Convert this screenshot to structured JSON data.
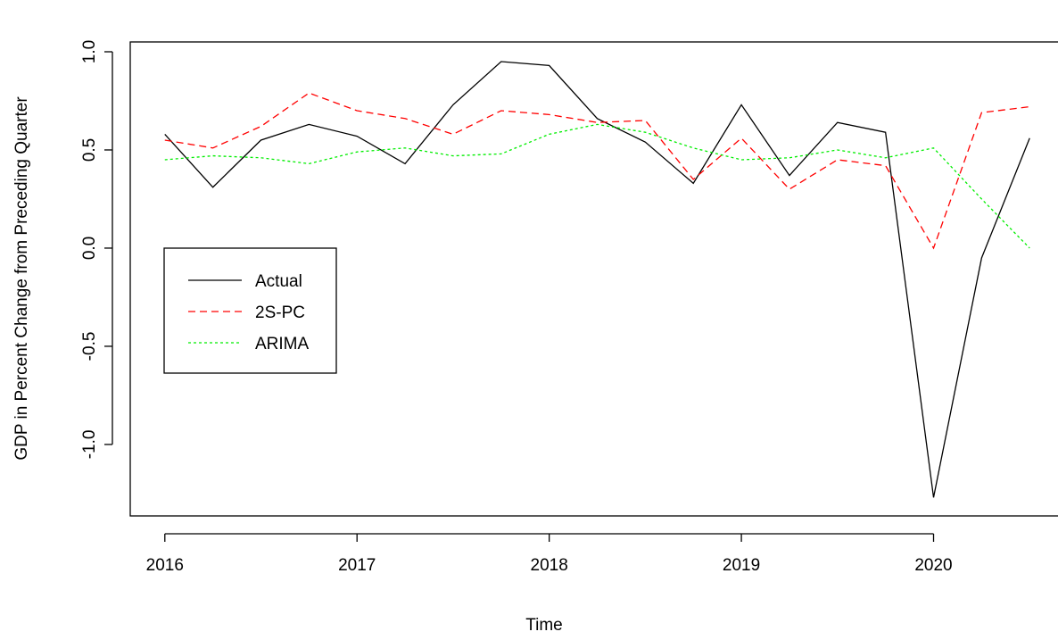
{
  "chart_data": {
    "type": "line",
    "x_label": "Time",
    "y_label": "GDP in Percent Change from Preceding Quarter",
    "x": [
      2016,
      2016.25,
      2016.5,
      2016.75,
      2017,
      2017.25,
      2017.5,
      2017.75,
      2018,
      2018.25,
      2018.5,
      2018.75,
      2019,
      2019.25,
      2019.5,
      2019.75,
      2020,
      2020.25,
      2020.5
    ],
    "series": [
      {
        "name": "Actual",
        "color": "#000000",
        "dash": "solid",
        "values": [
          0.58,
          0.31,
          0.55,
          0.63,
          0.57,
          0.43,
          0.73,
          0.95,
          0.93,
          0.66,
          0.54,
          0.33,
          0.73,
          0.37,
          0.64,
          0.59,
          -1.27,
          -0.05,
          0.56
        ]
      },
      {
        "name": "2S-PC",
        "color": "#ff0000",
        "dash": "dashed",
        "values": [
          0.55,
          0.51,
          0.62,
          0.79,
          0.7,
          0.66,
          0.58,
          0.7,
          0.68,
          0.64,
          0.65,
          0.35,
          0.56,
          0.3,
          0.45,
          0.42,
          0.0,
          0.69,
          0.72
        ]
      },
      {
        "name": "ARIMA",
        "color": "#00ee00",
        "dash": "dotted",
        "values": [
          0.45,
          0.47,
          0.46,
          0.43,
          0.49,
          0.51,
          0.47,
          0.48,
          0.58,
          0.63,
          0.59,
          0.51,
          0.45,
          0.46,
          0.5,
          0.46,
          0.51,
          0.25,
          0.0
        ]
      }
    ],
    "xlim": [
      2015.82,
      2020.68
    ],
    "xticks": [
      2016,
      2017,
      2018,
      2019,
      2020
    ],
    "ylim": [
      -1.364,
      1.05
    ],
    "yticks": [
      {
        "value": -1,
        "label": "-1.0"
      },
      {
        "value": -0.5,
        "label": "-0.5"
      },
      {
        "value": 0,
        "label": "0.0"
      },
      {
        "value": 0.5,
        "label": "0.5"
      },
      {
        "value": 1,
        "label": "1.0"
      }
    ],
    "grid": false,
    "legend": "left"
  }
}
